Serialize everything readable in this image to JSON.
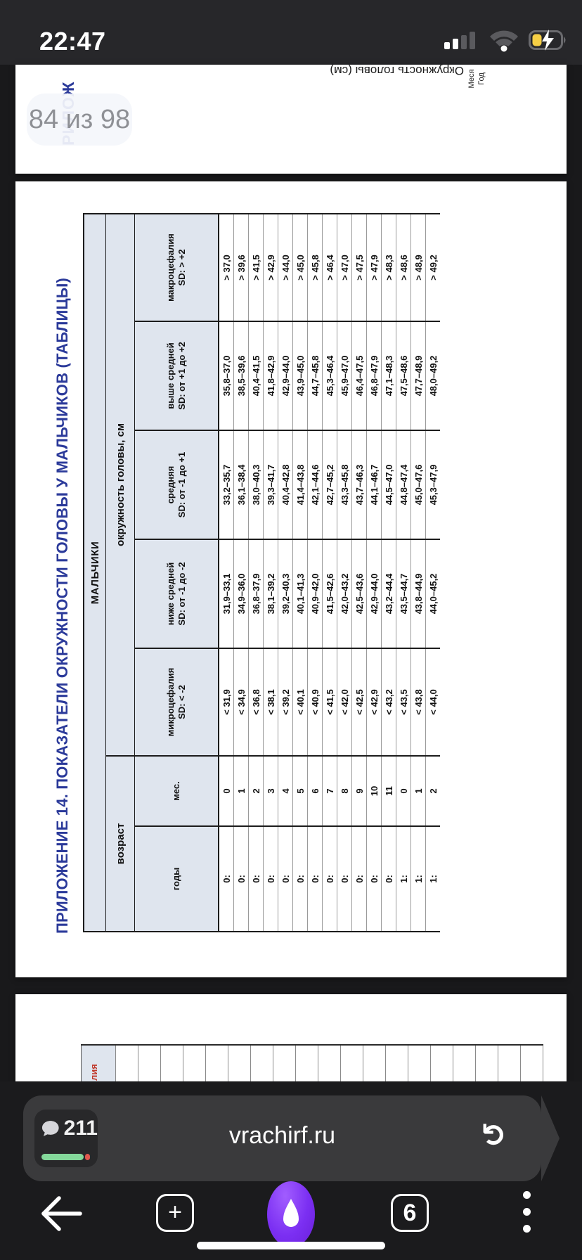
{
  "status_bar": {
    "time": "22:47",
    "battery_color": "#f6cf45"
  },
  "pager": {
    "label": "84 из 98"
  },
  "prev_page": {
    "chart_axis_label": "Окружность головы (см)",
    "x_axis_line1": "Меся",
    "x_axis_line2": "Год",
    "title_fragment": "РИЛОЖ"
  },
  "next_page": {
    "header_fragment": "лия",
    "empty_cells": 19
  },
  "document": {
    "title": "ПРИЛОЖЕНИЕ 14. ПОКАЗАТЕЛИ ОКРУЖНОСТИ ГОЛОВЫ У МАЛЬЧИКОВ (ТАБЛИЦЫ)",
    "title_color": "#2b3a9a",
    "table": {
      "group_header": "МАЛЬЧИКИ",
      "age_header": "возраст",
      "measure_header": "окружность головы, см",
      "col_years": "годы",
      "col_months": "мес.",
      "columns": [
        {
          "label": "микроцефалия",
          "sub": "SD: < -2",
          "color": "#c0392b"
        },
        {
          "label": "ниже средней",
          "sub": "SD: от -1 до -2",
          "color": "#e2711d"
        },
        {
          "label": "средняя",
          "sub": "SD: от -1 до +1",
          "color": "#2e7d35"
        },
        {
          "label": "выше средней",
          "sub": "SD: от +1 до +2",
          "color": "#e2711d"
        },
        {
          "label": "макроцефалия",
          "sub": "SD: > +2",
          "color": "#c0392b"
        }
      ],
      "rows": [
        {
          "years": "0:",
          "months": "0",
          "values": [
            "< 31,9",
            "31,9–33,1",
            "33,2–35,7",
            "35,8–37,0",
            "> 37,0"
          ],
          "highlight": false
        },
        {
          "years": "0:",
          "months": "1",
          "values": [
            "< 34,9",
            "34,9–36,0",
            "36,1–38,4",
            "38,5–39,6",
            "> 39,6"
          ],
          "highlight": false
        },
        {
          "years": "0:",
          "months": "2",
          "values": [
            "< 36,8",
            "36,8–37,9",
            "38,0–40,3",
            "40,4–41,5",
            "> 41,5"
          ],
          "highlight": false
        },
        {
          "years": "0:",
          "months": "3",
          "values": [
            "< 38,1",
            "38,1–39,2",
            "39,3–41,7",
            "41,8–42,9",
            "> 42,9"
          ],
          "highlight": false
        },
        {
          "years": "0:",
          "months": "4",
          "values": [
            "< 39,2",
            "39,2–40,3",
            "40,4–42,8",
            "42,9–44,0",
            "> 44,0"
          ],
          "highlight": false
        },
        {
          "years": "0:",
          "months": "5",
          "values": [
            "< 40,1",
            "40,1–41,3",
            "41,4–43,8",
            "43,9–45,0",
            "> 45,0"
          ],
          "highlight": false
        },
        {
          "years": "0:",
          "months": "6",
          "values": [
            "< 40,9",
            "40,9–42,0",
            "42,1–44,6",
            "44,7–45,8",
            "> 45,8"
          ],
          "highlight": false
        },
        {
          "years": "0:",
          "months": "7",
          "values": [
            "< 41,5",
            "41,5–42,6",
            "42,7–45,2",
            "45,3–46,4",
            "> 46,4"
          ],
          "highlight": false
        },
        {
          "years": "0:",
          "months": "8",
          "values": [
            "< 42,0",
            "42,0–43,2",
            "43,3–45,8",
            "45,9–47,0",
            "> 47,0"
          ],
          "highlight": false
        },
        {
          "years": "0:",
          "months": "9",
          "values": [
            "< 42,5",
            "42,5–43,6",
            "43,7–46,3",
            "46,4–47,5",
            "> 47,5"
          ],
          "highlight": false
        },
        {
          "years": "0:",
          "months": "10",
          "values": [
            "< 42,9",
            "42,9–44,0",
            "44,1–46,7",
            "46,8–47,9",
            "> 47,9"
          ],
          "highlight": false
        },
        {
          "years": "0:",
          "months": "11",
          "values": [
            "< 43,2",
            "43,2–44,4",
            "44,5–47,0",
            "47,1–48,3",
            "> 48,3"
          ],
          "highlight": false
        },
        {
          "years": "1:",
          "months": "0",
          "values": [
            "< 43,5",
            "43,5–44,7",
            "44,8–47,4",
            "47,5–48,6",
            "> 48,6"
          ],
          "highlight": true
        },
        {
          "years": "1:",
          "months": "1",
          "values": [
            "< 43,8",
            "43,8–44,9",
            "45,0–47,6",
            "47,7–48,9",
            "> 48,9"
          ],
          "highlight": false
        },
        {
          "years": "1:",
          "months": "2",
          "values": [
            "< 44,0",
            "44,0–45,2",
            "45,3–47,9",
            "48,0–49,2",
            "> 49,2"
          ],
          "highlight": false
        }
      ]
    }
  },
  "browser": {
    "comments_count": "211",
    "url": "vrachirf.ru",
    "refresh_glyph": "↻",
    "tabs_count": "6",
    "plus_glyph": "+",
    "accent_orb": "#7b2ff2",
    "progress_green": "#84d89a",
    "progress_red": "#e0584d"
  }
}
